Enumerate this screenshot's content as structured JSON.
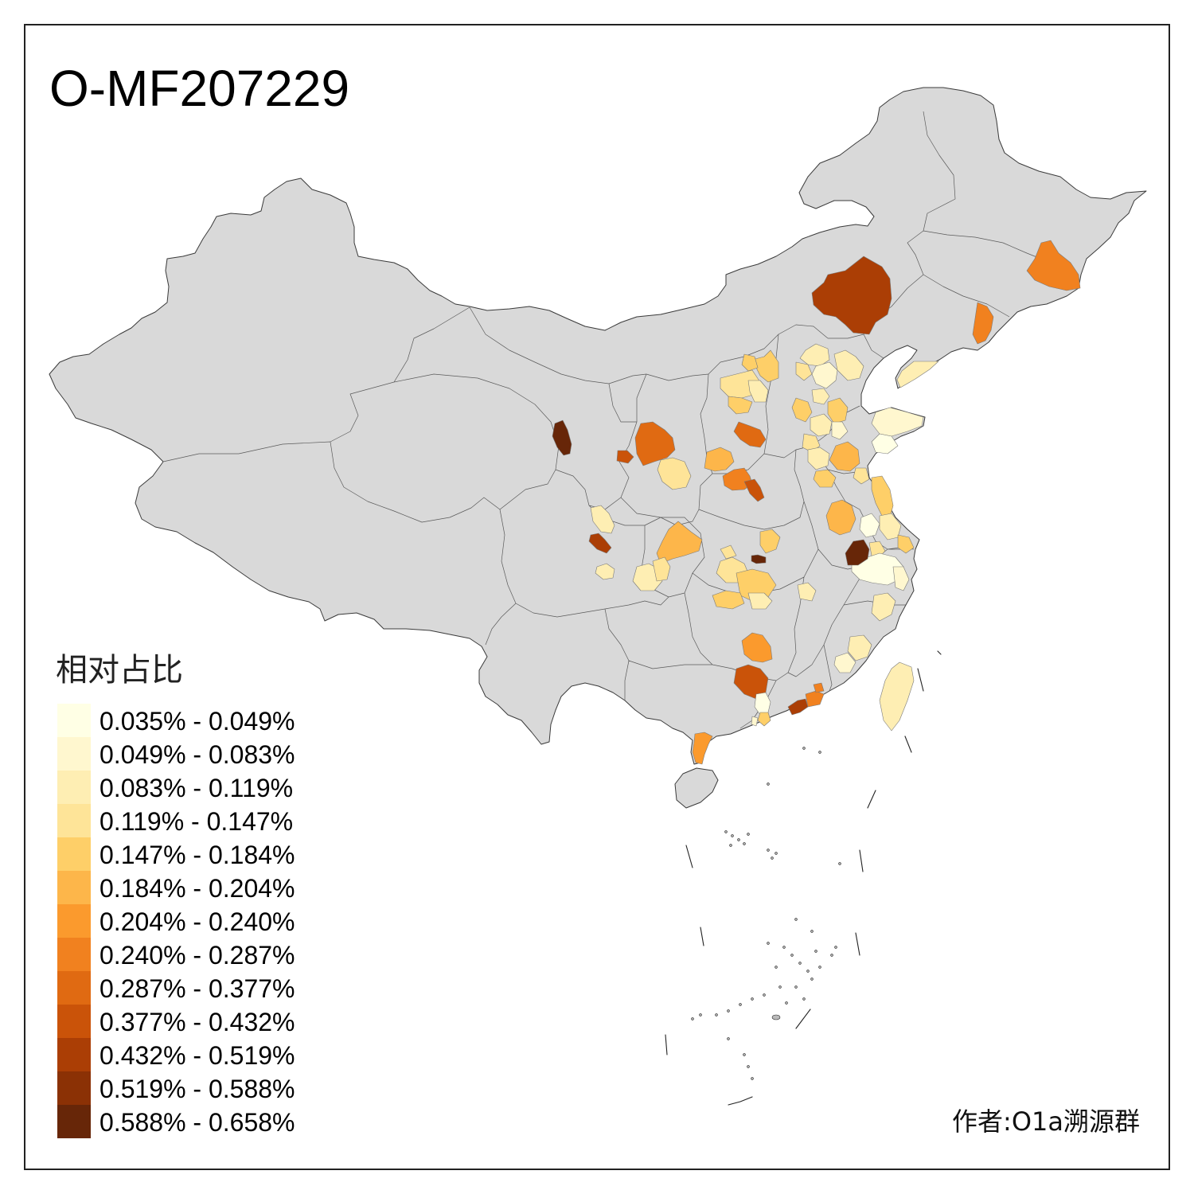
{
  "title": "O-MF207229",
  "legend": {
    "title": "相对占比",
    "bins": [
      {
        "label": "0.035% - 0.049%",
        "color": "#ffffe5"
      },
      {
        "label": "0.049% - 0.083%",
        "color": "#fff7cf"
      },
      {
        "label": "0.083% - 0.119%",
        "color": "#feeeb3"
      },
      {
        "label": "0.119% - 0.147%",
        "color": "#fee498"
      },
      {
        "label": "0.147% - 0.184%",
        "color": "#fecf68"
      },
      {
        "label": "0.184% - 0.204%",
        "color": "#fdb64a"
      },
      {
        "label": "0.204% - 0.240%",
        "color": "#fb9a2d"
      },
      {
        "label": "0.240% - 0.287%",
        "color": "#f1811f"
      },
      {
        "label": "0.287% - 0.377%",
        "color": "#e06a12"
      },
      {
        "label": "0.377% - 0.432%",
        "color": "#ca5309"
      },
      {
        "label": "0.432% - 0.519%",
        "color": "#ab3e05"
      },
      {
        "label": "0.519% - 0.588%",
        "color": "#8b3105"
      },
      {
        "label": "0.588% - 0.658%",
        "color": "#672608"
      }
    ]
  },
  "map": {
    "land_color": "#d9d9d9",
    "border_color": "#3a3a3a"
  },
  "credit": "作者:O1a溯源群"
}
